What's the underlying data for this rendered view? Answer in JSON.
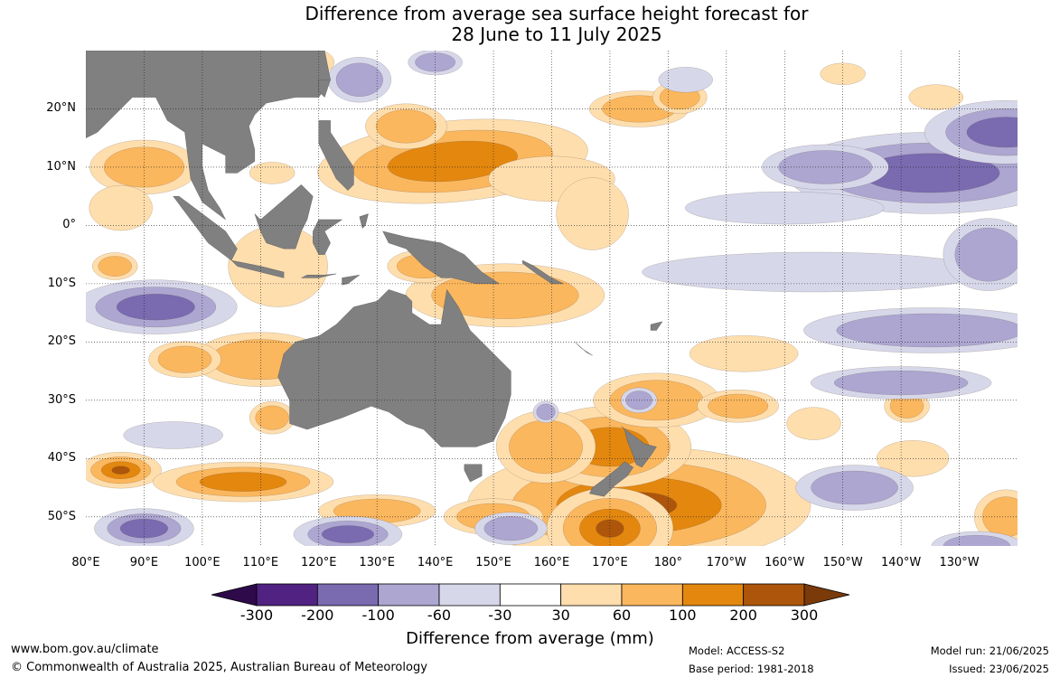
{
  "map": {
    "title_line1": "Difference from average sea surface height forecast for",
    "title_line2": "28 June to 11 July 2025",
    "lat_labels": [
      {
        "text": "20°N",
        "lat": 20
      },
      {
        "text": "10°N",
        "lat": 10
      },
      {
        "text": "0°",
        "lat": 0
      },
      {
        "text": "10°S",
        "lat": -10
      },
      {
        "text": "20°S",
        "lat": -20
      },
      {
        "text": "30°S",
        "lat": -30
      },
      {
        "text": "40°S",
        "lat": -40
      },
      {
        "text": "50°S",
        "lat": -50
      }
    ],
    "lon_labels": [
      {
        "text": "80°E",
        "lon": 80
      },
      {
        "text": "90°E",
        "lon": 90
      },
      {
        "text": "100°E",
        "lon": 100
      },
      {
        "text": "110°E",
        "lon": 110
      },
      {
        "text": "120°E",
        "lon": 120
      },
      {
        "text": "130°E",
        "lon": 130
      },
      {
        "text": "140°E",
        "lon": 140
      },
      {
        "text": "150°E",
        "lon": 150
      },
      {
        "text": "160°E",
        "lon": 160
      },
      {
        "text": "170°E",
        "lon": 170
      },
      {
        "text": "180°",
        "lon": 180
      },
      {
        "text": "170°W",
        "lon": 190
      },
      {
        "text": "160°W",
        "lon": 200
      },
      {
        "text": "150°W",
        "lon": 210
      },
      {
        "text": "140°W",
        "lon": 220
      },
      {
        "text": "130°W",
        "lon": 230
      }
    ],
    "extent": {
      "lon_min": 80,
      "lon_max": 240,
      "lat_min": -55,
      "lat_max": 30
    },
    "land_color": "#808080"
  },
  "colorbar": {
    "ticks": [
      "-300",
      "-200",
      "-100",
      "-60",
      "-30",
      "30",
      "60",
      "100",
      "200",
      "300"
    ],
    "bins": [
      {
        "color": "#2e0a4a"
      },
      {
        "color": "#512281"
      },
      {
        "color": "#7a6ab0"
      },
      {
        "color": "#aca6d1"
      },
      {
        "color": "#d7d7ea"
      },
      {
        "color": "#ffffff"
      },
      {
        "color": "#ffdeae"
      },
      {
        "color": "#fbb75e"
      },
      {
        "color": "#e3870f"
      },
      {
        "color": "#ad560b"
      },
      {
        "color": "#7a3a0a"
      }
    ],
    "label": "Difference from average (mm)"
  },
  "footer": {
    "website": "www.bom.gov.au/climate",
    "copyright": "© Commonwealth of Australia 2025, Australian Bureau of Meteorology",
    "model": "Model: ACCESS-S2",
    "base_period": "Base period: 1981-2018",
    "model_run": "Model run: 21/06/2025",
    "issued": "Issued: 23/06/2025"
  }
}
